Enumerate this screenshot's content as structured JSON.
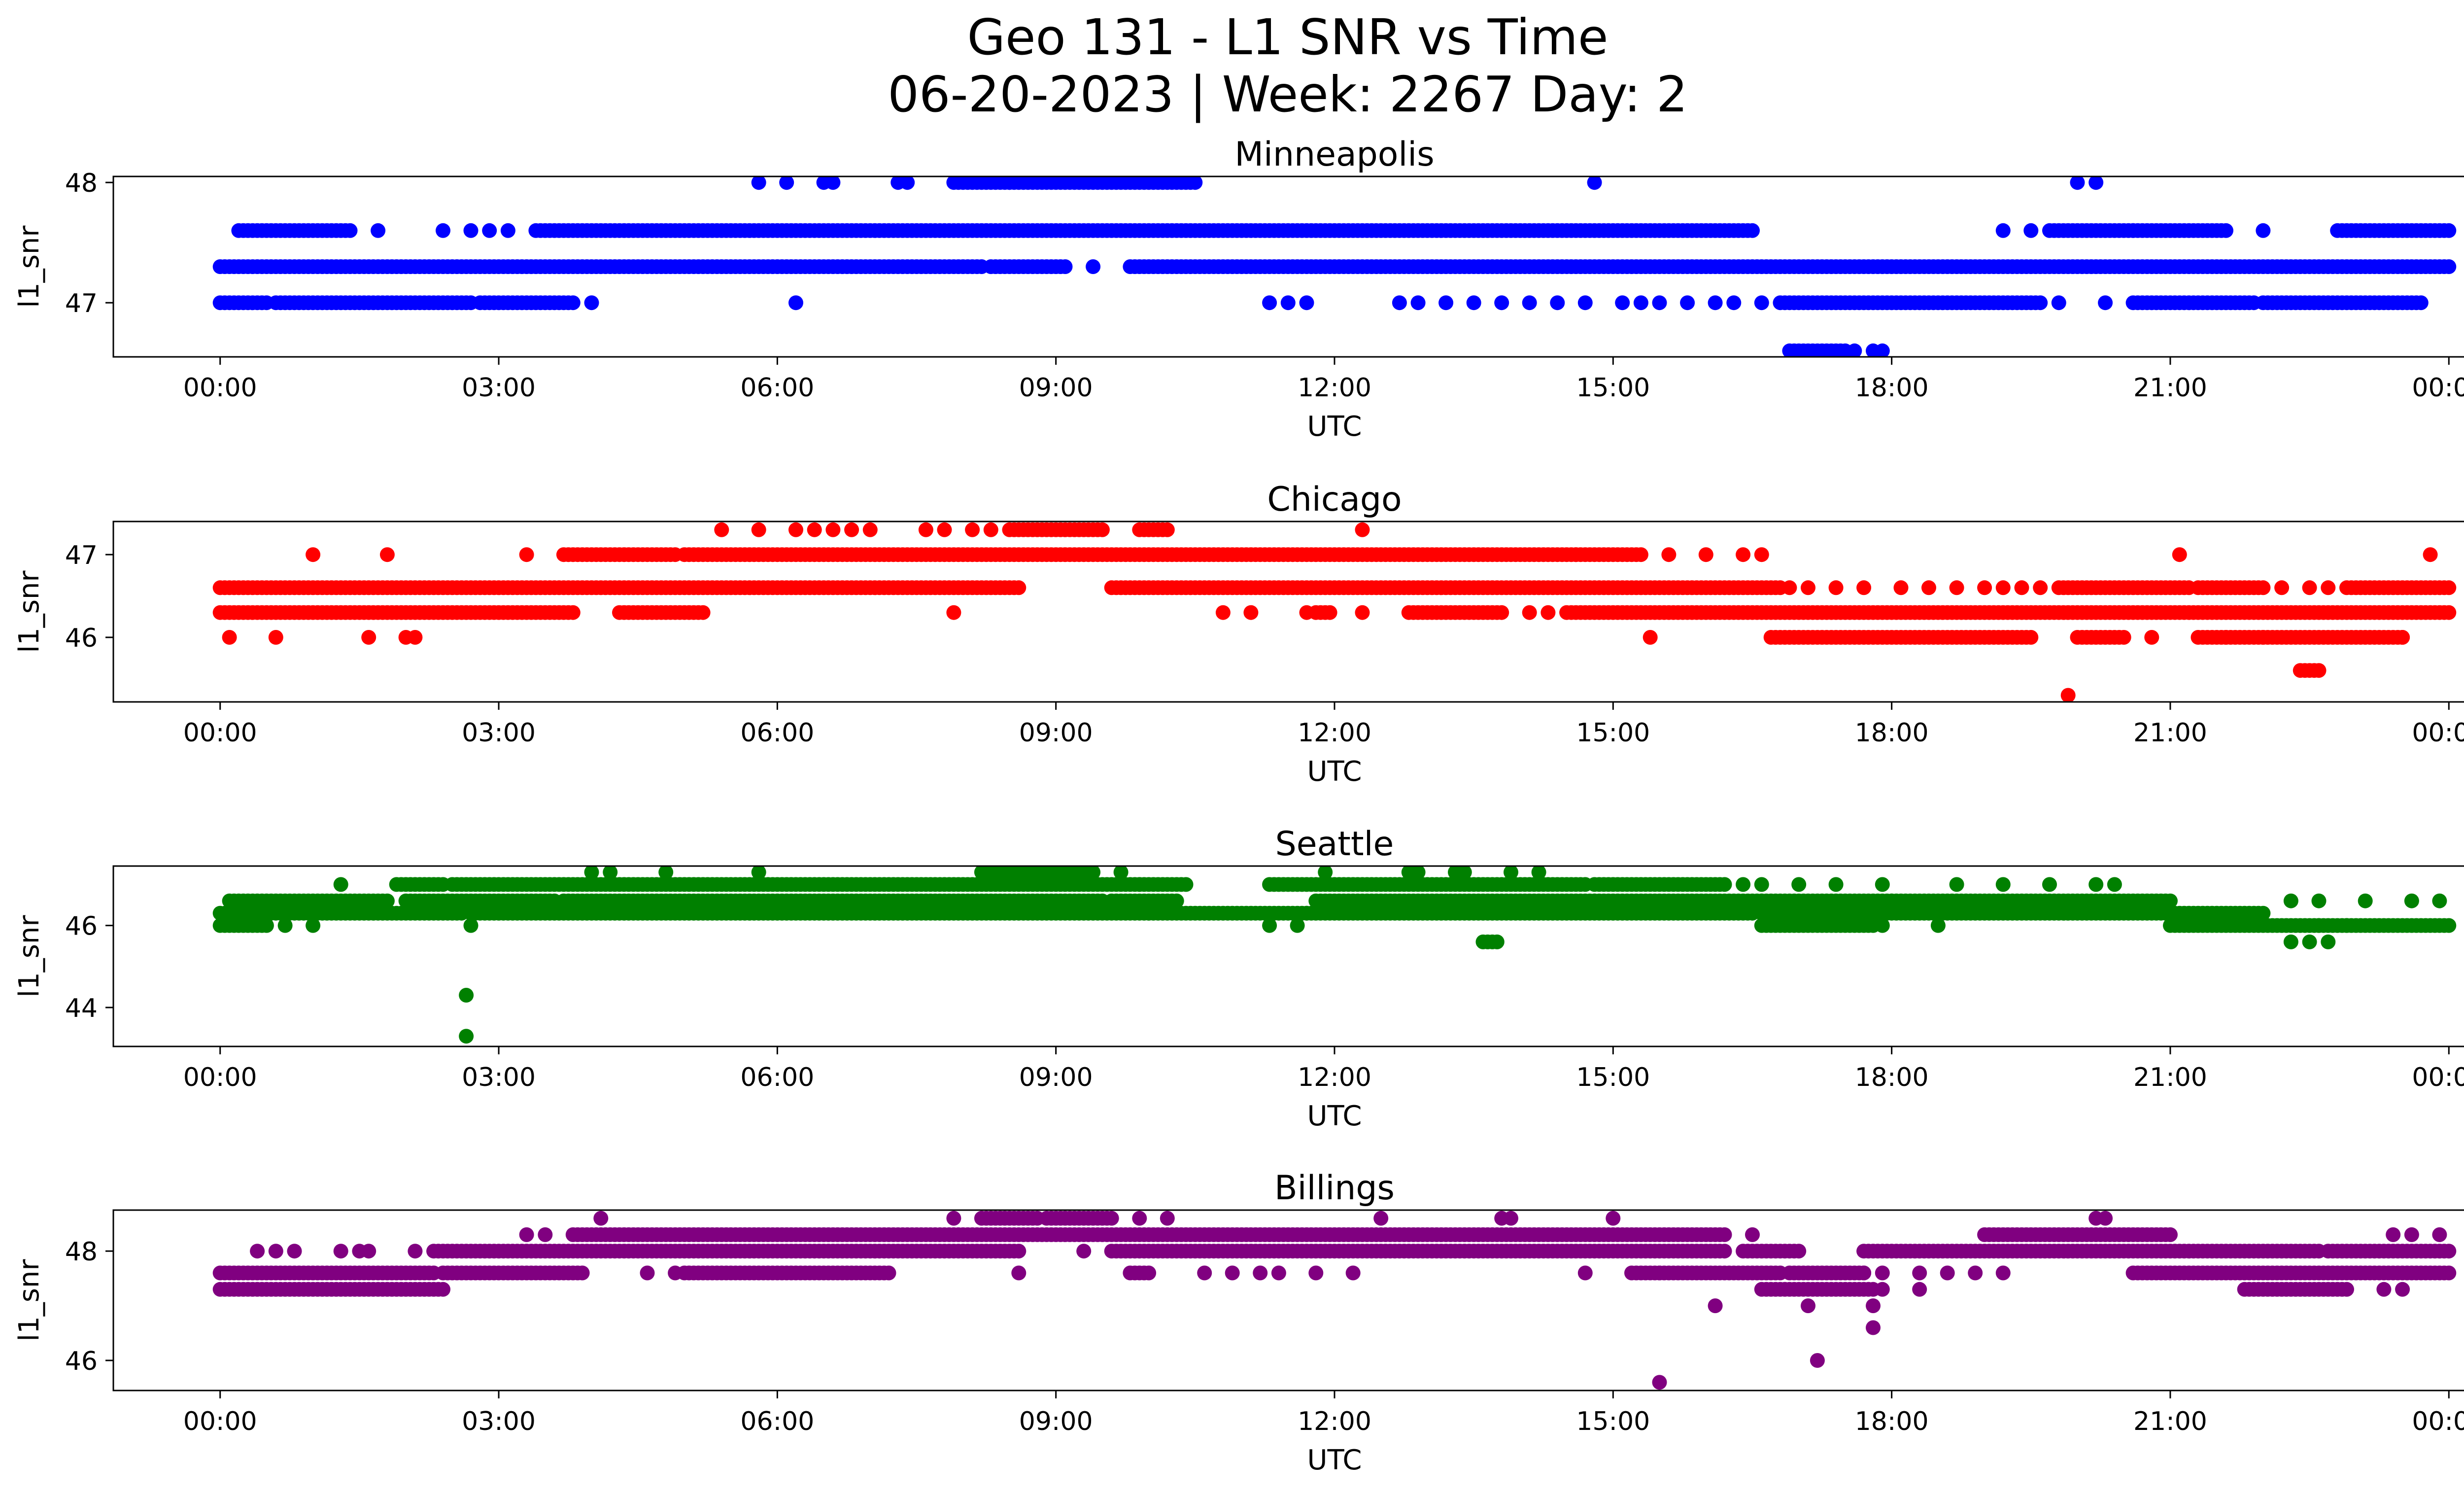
{
  "figure": {
    "title_line1": "Geo 131 - L1 SNR vs Time",
    "title_line2": "06-20-2023 | Week: 2267 Day: 2"
  },
  "chart_data": [
    {
      "type": "scatter",
      "title": "Minneapolis",
      "xlabel": "UTC",
      "ylabel": "l1_snr",
      "color": "#0000ff",
      "xlim_hours": [
        -1.15,
        25.15
      ],
      "ylim": [
        46.55,
        48.05
      ],
      "x_ticks": [
        "00:00",
        "03:00",
        "06:00",
        "09:00",
        "12:00",
        "15:00",
        "18:00",
        "21:00",
        "00:00"
      ],
      "y_ticks": [
        47,
        48
      ],
      "series": [
        {
          "y": 47.3,
          "x_ranges": [
            [
              0.0,
              8.2
            ],
            [
              8.3,
              9.1
            ],
            [
              9.8,
              24.0
            ]
          ],
          "x_points": [
            9.4
          ]
        },
        {
          "y": 47.6,
          "x_ranges": [
            [
              0.2,
              1.4
            ],
            [
              3.4,
              16.5
            ],
            [
              19.7,
              20.6
            ],
            [
              20.6,
              21.6
            ],
            [
              22.8,
              24.0
            ]
          ],
          "x_points": [
            1.7,
            2.4,
            2.7,
            2.9,
            3.1,
            19.2,
            19.5,
            22.0
          ]
        },
        {
          "y": 47.0,
          "x_ranges": [
            [
              0.0,
              0.5
            ],
            [
              0.6,
              2.7
            ],
            [
              2.8,
              3.8
            ],
            [
              16.8,
              19.6
            ],
            [
              20.6,
              21.9
            ],
            [
              22.0,
              23.7
            ]
          ],
          "x_points": [
            4.0,
            6.2,
            11.3,
            11.5,
            11.7,
            12.7,
            12.9,
            13.2,
            13.5,
            13.8,
            14.1,
            14.4,
            14.7,
            15.1,
            15.3,
            15.5,
            15.8,
            16.1,
            16.3,
            16.6,
            19.8,
            20.3
          ]
        },
        {
          "y": 48.0,
          "x_ranges": [
            [
              7.9,
              8.5
            ],
            [
              8.5,
              10.5
            ]
          ],
          "x_points": [
            5.8,
            6.1,
            6.5,
            6.6,
            7.3,
            7.4,
            14.8,
            20.0,
            20.2
          ]
        },
        {
          "y": 46.6,
          "x_ranges": [
            [
              16.9,
              17.5
            ]
          ],
          "x_points": [
            17.6,
            17.8,
            17.9
          ]
        }
      ]
    },
    {
      "type": "scatter",
      "title": "Chicago",
      "xlabel": "UTC",
      "ylabel": "l1_snr",
      "color": "#ff0000",
      "xlim_hours": [
        -1.15,
        25.15
      ],
      "ylim": [
        45.22,
        47.4
      ],
      "x_ticks": [
        "00:00",
        "03:00",
        "06:00",
        "09:00",
        "12:00",
        "15:00",
        "18:00",
        "21:00",
        "00:00"
      ],
      "y_ticks": [
        46,
        47
      ],
      "series": [
        {
          "y": 46.6,
          "x_ranges": [
            [
              0.0,
              8.6
            ],
            [
              9.6,
              16.8
            ]
          ],
          "x_points": [
            16.9,
            17.1,
            17.4,
            17.7,
            18.1,
            18.4,
            18.7,
            19.0,
            19.2,
            19.4
          ]
        },
        {
          "y": 46.3,
          "x_ranges": [
            [
              0.0,
              3.8
            ],
            [
              4.3,
              5.2
            ],
            [
              11.8,
              11.95
            ],
            [
              12.8,
              13.8
            ],
            [
              14.5,
              24.0
            ]
          ],
          "x_points": [
            7.9,
            10.8,
            11.1,
            11.7,
            12.3,
            14.1,
            14.3
          ]
        },
        {
          "y": 46.6,
          "x_ranges": [
            [
              19.8,
              21.2
            ],
            [
              21.3,
              22.0
            ],
            [
              22.9,
              24.0
            ]
          ],
          "x_points": [
            19.6,
            22.2,
            22.5,
            22.7
          ]
        },
        {
          "y": 47.0,
          "x_ranges": [
            [
              3.7,
              4.9
            ],
            [
              5.0,
              14.6
            ],
            [
              14.6,
              15.3
            ]
          ],
          "x_points": [
            1.0,
            1.8,
            3.3,
            15.6,
            16.0,
            16.4,
            16.6,
            21.1,
            23.8
          ]
        },
        {
          "y": 47.3,
          "x_ranges": [
            [
              8.5,
              9.5
            ],
            [
              9.9,
              10.2
            ]
          ],
          "x_points": [
            5.4,
            5.8,
            6.2,
            6.4,
            6.6,
            6.8,
            7.0,
            7.6,
            7.8,
            8.1,
            8.3,
            12.3
          ]
        },
        {
          "y": 46.0,
          "x_ranges": [
            [
              16.7,
              19.5
            ],
            [
              20.0,
              20.5
            ],
            [
              21.3,
              22.0
            ],
            [
              22.0,
              23.5
            ]
          ],
          "x_points": [
            0.1,
            0.6,
            1.6,
            2.1,
            2.0,
            15.4,
            20.8,
            21.6,
            23.5
          ]
        },
        {
          "y": 45.6,
          "x_ranges": [
            [
              22.4,
              22.6
            ]
          ],
          "x_points": []
        },
        {
          "y": 45.3,
          "x_ranges": [],
          "x_points": [
            19.9
          ]
        }
      ]
    },
    {
      "type": "scatter",
      "title": "Seattle",
      "xlabel": "UTC",
      "ylabel": "l1_snr",
      "color": "#008000",
      "xlim_hours": [
        -1.15,
        25.15
      ],
      "ylim": [
        43.05,
        47.45
      ],
      "x_ticks": [
        "00:00",
        "03:00",
        "06:00",
        "09:00",
        "12:00",
        "15:00",
        "18:00",
        "21:00",
        "00:00"
      ],
      "y_ticks": [
        44,
        46
      ],
      "series": [
        {
          "y": 46.3,
          "x_ranges": [
            [
              0.0,
              2.6
            ],
            [
              2.7,
              10.0
            ],
            [
              10.0,
              11.7
            ],
            [
              11.7,
              16.5
            ],
            [
              16.6,
              21.0
            ],
            [
              21.0,
              22.0
            ]
          ],
          "x_points": []
        },
        {
          "y": 46.6,
          "x_ranges": [
            [
              0.1,
              1.8
            ],
            [
              2.0,
              3.6
            ],
            [
              3.7,
              9.5
            ],
            [
              9.6,
              10.3
            ],
            [
              11.8,
              14.8
            ],
            [
              14.8,
              16.6
            ],
            [
              16.6,
              18.0
            ],
            [
              18.0,
              21.0
            ]
          ],
          "x_points": [
            22.3,
            22.6,
            23.1,
            23.6,
            23.9
          ]
        },
        {
          "y": 47.0,
          "x_ranges": [
            [
              1.9,
              2.4
            ],
            [
              2.5,
              9.9
            ],
            [
              9.9,
              10.4
            ],
            [
              11.3,
              14.7
            ],
            [
              14.8,
              16.2
            ]
          ],
          "x_points": [
            1.3,
            16.4,
            16.6,
            17.0,
            17.4,
            17.9,
            18.7,
            19.2,
            19.7,
            20.2,
            20.4
          ]
        },
        {
          "y": 46.0,
          "x_ranges": [
            [
              0.0,
              0.5
            ],
            [
              16.6,
              17.8
            ],
            [
              21.0,
              24.0
            ]
          ],
          "x_points": [
            0.7,
            1.0,
            2.7,
            11.3,
            11.6,
            17.9,
            18.5,
            22.6,
            22.9
          ]
        },
        {
          "y": 47.3,
          "x_ranges": [
            [
              8.2,
              9.4
            ]
          ],
          "x_points": [
            4.0,
            4.2,
            4.8,
            5.8,
            9.7,
            11.9,
            12.8,
            12.9,
            13.3,
            13.4,
            13.9,
            14.2
          ]
        },
        {
          "y": 45.6,
          "x_ranges": [
            [
              13.6,
              13.75
            ]
          ],
          "x_points": [
            22.3,
            22.5,
            22.7
          ]
        },
        {
          "y": 44.3,
          "x_ranges": [],
          "x_points": [
            2.65
          ]
        },
        {
          "y": 43.3,
          "x_ranges": [],
          "x_points": [
            2.65
          ]
        }
      ]
    },
    {
      "type": "scatter",
      "title": "Billings",
      "xlabel": "UTC",
      "ylabel": "l1_snr",
      "color": "#800080",
      "xlim_hours": [
        -1.15,
        25.15
      ],
      "ylim": [
        45.45,
        48.75
      ],
      "x_ticks": [
        "00:00",
        "03:00",
        "06:00",
        "09:00",
        "12:00",
        "15:00",
        "18:00",
        "21:00",
        "00:00"
      ],
      "y_ticks": [
        46,
        48
      ],
      "series": [
        {
          "y": 47.6,
          "x_ranges": [
            [
              0.0,
              2.3
            ],
            [
              2.4,
              3.9
            ],
            [
              5.0,
              7.2
            ],
            [
              9.8,
              10.0
            ],
            [
              15.2,
              16.8
            ],
            [
              16.9,
              17.7
            ],
            [
              20.6,
              24.0
            ]
          ],
          "x_points": [
            4.6,
            4.9,
            8.6,
            10.6,
            10.9,
            11.2,
            11.4,
            11.8,
            12.2,
            14.7,
            15.5,
            17.7,
            17.9,
            18.3,
            18.6,
            18.9,
            19.2
          ]
        },
        {
          "y": 47.3,
          "x_ranges": [
            [
              0.0,
              2.4
            ],
            [
              16.6,
              17.8
            ],
            [
              21.8,
              22.9
            ]
          ],
          "x_points": [
            17.9,
            18.3,
            23.3,
            23.5
          ]
        },
        {
          "y": 48.0,
          "x_ranges": [
            [
              2.3,
              8.6
            ],
            [
              9.6,
              16.2
            ],
            [
              16.4,
              17.0
            ],
            [
              17.7,
              22.6
            ],
            [
              22.7,
              24.0
            ]
          ],
          "x_points": [
            0.4,
            0.6,
            0.8,
            1.3,
            1.5,
            1.6,
            2.1,
            9.3
          ]
        },
        {
          "y": 48.3,
          "x_ranges": [
            [
              3.8,
              16.2
            ],
            [
              19.0,
              21.0
            ]
          ],
          "x_points": [
            3.3,
            3.5,
            16.5,
            23.4,
            23.6,
            23.9
          ]
        },
        {
          "y": 48.6,
          "x_ranges": [
            [
              8.2,
              8.8
            ],
            [
              8.9,
              9.6
            ]
          ],
          "x_points": [
            4.1,
            7.9,
            9.9,
            10.2,
            12.5,
            13.8,
            13.9,
            15.0,
            20.2,
            20.3
          ]
        },
        {
          "y": 47.0,
          "x_ranges": [],
          "x_points": [
            16.1,
            17.1,
            17.8
          ]
        },
        {
          "y": 46.6,
          "x_ranges": [],
          "x_points": [
            17.8
          ]
        },
        {
          "y": 46.0,
          "x_ranges": [],
          "x_points": [
            17.2
          ]
        },
        {
          "y": 45.6,
          "x_ranges": [],
          "x_points": [
            15.5
          ]
        }
      ]
    }
  ]
}
